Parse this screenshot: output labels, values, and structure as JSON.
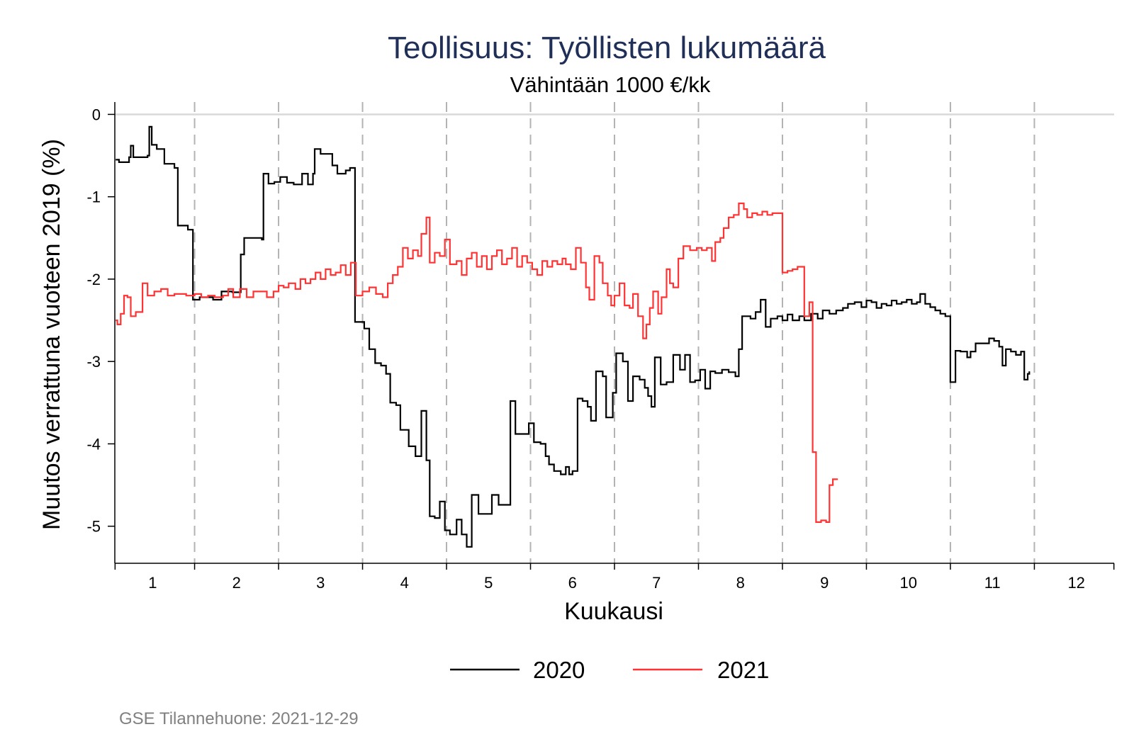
{
  "chart_data": {
    "type": "line",
    "title": "Teollisuus: Työllisten lukumäärä",
    "subtitle": "Vähintään 1000 €/kk",
    "xlabel": "Kuukausi",
    "ylabel": "Muutos verrattuna vuoteen 2019 (%)",
    "xlim": [
      0.55,
      12.45
    ],
    "ylim": [
      -5.45,
      0.15
    ],
    "x_ticks": [
      "1",
      "2",
      "3",
      "4",
      "5",
      "6",
      "7",
      "8",
      "9",
      "10",
      "11",
      "12"
    ],
    "y_ticks": [
      "0",
      "-1",
      "-2",
      "-3",
      "-4",
      "-5"
    ],
    "month_boundaries": [
      1.5,
      2.5,
      3.5,
      4.5,
      5.5,
      6.5,
      7.5,
      8.5,
      9.5,
      10.5,
      11.5
    ],
    "reference_line_y": 0,
    "legend_position": "bottom",
    "series": [
      {
        "name": "2020",
        "color": "#000000",
        "points": [
          [
            0.56,
            -0.55
          ],
          [
            0.6,
            -0.58
          ],
          [
            0.72,
            -0.52
          ],
          [
            0.74,
            -0.38
          ],
          [
            0.77,
            -0.52
          ],
          [
            0.86,
            -0.52
          ],
          [
            0.94,
            -0.5
          ],
          [
            0.96,
            -0.15
          ],
          [
            0.99,
            -0.37
          ],
          [
            1.05,
            -0.42
          ],
          [
            1.14,
            -0.6
          ],
          [
            1.21,
            -0.6
          ],
          [
            1.26,
            -0.65
          ],
          [
            1.3,
            -1.35
          ],
          [
            1.42,
            -1.4
          ],
          [
            1.48,
            -2.25
          ],
          [
            1.56,
            -2.22
          ],
          [
            1.72,
            -2.25
          ],
          [
            1.82,
            -2.15
          ],
          [
            1.95,
            -2.16
          ],
          [
            2.05,
            -1.7
          ],
          [
            2.09,
            -1.5
          ],
          [
            2.18,
            -1.5
          ],
          [
            2.3,
            -1.52
          ],
          [
            2.32,
            -0.72
          ],
          [
            2.38,
            -0.84
          ],
          [
            2.45,
            -0.82
          ],
          [
            2.52,
            -0.76
          ],
          [
            2.6,
            -0.83
          ],
          [
            2.68,
            -0.85
          ],
          [
            2.78,
            -0.72
          ],
          [
            2.85,
            -0.85
          ],
          [
            2.91,
            -0.72
          ],
          [
            2.93,
            -0.42
          ],
          [
            3.0,
            -0.48
          ],
          [
            3.14,
            -0.62
          ],
          [
            3.2,
            -0.72
          ],
          [
            3.3,
            -0.68
          ],
          [
            3.35,
            -0.65
          ],
          [
            3.41,
            -2.52
          ],
          [
            3.52,
            -2.6
          ],
          [
            3.58,
            -2.85
          ],
          [
            3.65,
            -3.02
          ],
          [
            3.72,
            -3.05
          ],
          [
            3.78,
            -3.15
          ],
          [
            3.83,
            -3.5
          ],
          [
            3.9,
            -3.53
          ],
          [
            3.95,
            -3.83
          ],
          [
            4.05,
            -4.03
          ],
          [
            4.13,
            -4.15
          ],
          [
            4.2,
            -3.6
          ],
          [
            4.26,
            -4.2
          ],
          [
            4.3,
            -4.88
          ],
          [
            4.36,
            -4.9
          ],
          [
            4.42,
            -4.7
          ],
          [
            4.48,
            -5.05
          ],
          [
            4.54,
            -5.1
          ],
          [
            4.62,
            -4.92
          ],
          [
            4.68,
            -5.1
          ],
          [
            4.74,
            -5.25
          ],
          [
            4.8,
            -4.62
          ],
          [
            4.88,
            -4.85
          ],
          [
            4.96,
            -4.85
          ],
          [
            5.04,
            -4.62
          ],
          [
            5.12,
            -4.74
          ],
          [
            5.22,
            -4.74
          ],
          [
            5.26,
            -3.48
          ],
          [
            5.32,
            -3.88
          ],
          [
            5.42,
            -3.88
          ],
          [
            5.48,
            -3.75
          ],
          [
            5.54,
            -3.98
          ],
          [
            5.62,
            -4.0
          ],
          [
            5.68,
            -4.15
          ],
          [
            5.72,
            -4.25
          ],
          [
            5.78,
            -4.33
          ],
          [
            5.86,
            -4.37
          ],
          [
            5.92,
            -4.28
          ],
          [
            5.96,
            -4.37
          ],
          [
            6.0,
            -4.33
          ],
          [
            6.06,
            -3.45
          ],
          [
            6.12,
            -3.48
          ],
          [
            6.18,
            -3.55
          ],
          [
            6.22,
            -3.72
          ],
          [
            6.28,
            -3.12
          ],
          [
            6.36,
            -3.18
          ],
          [
            6.4,
            -3.68
          ],
          [
            6.48,
            -3.38
          ],
          [
            6.52,
            -2.9
          ],
          [
            6.6,
            -3.0
          ],
          [
            6.66,
            -3.48
          ],
          [
            6.72,
            -3.18
          ],
          [
            6.8,
            -3.22
          ],
          [
            6.86,
            -3.32
          ],
          [
            6.9,
            -3.42
          ],
          [
            6.94,
            -3.55
          ],
          [
            6.98,
            -2.95
          ],
          [
            7.05,
            -3.28
          ],
          [
            7.12,
            -3.25
          ],
          [
            7.2,
            -2.92
          ],
          [
            7.28,
            -3.1
          ],
          [
            7.34,
            -2.92
          ],
          [
            7.4,
            -3.25
          ],
          [
            7.46,
            -3.23
          ],
          [
            7.52,
            -3.1
          ],
          [
            7.58,
            -3.33
          ],
          [
            7.64,
            -3.12
          ],
          [
            7.7,
            -3.14
          ],
          [
            7.78,
            -3.1
          ],
          [
            7.86,
            -3.13
          ],
          [
            7.94,
            -3.18
          ],
          [
            7.98,
            -2.85
          ],
          [
            8.02,
            -2.45
          ],
          [
            8.12,
            -2.48
          ],
          [
            8.18,
            -2.4
          ],
          [
            8.24,
            -2.25
          ],
          [
            8.3,
            -2.58
          ],
          [
            8.36,
            -2.48
          ],
          [
            8.44,
            -2.45
          ],
          [
            8.5,
            -2.5
          ],
          [
            8.56,
            -2.43
          ],
          [
            8.62,
            -2.5
          ],
          [
            8.7,
            -2.45
          ],
          [
            8.76,
            -2.5
          ],
          [
            8.84,
            -2.42
          ],
          [
            8.92,
            -2.48
          ],
          [
            8.98,
            -2.38
          ],
          [
            9.06,
            -2.42
          ],
          [
            9.14,
            -2.38
          ],
          [
            9.22,
            -2.35
          ],
          [
            9.28,
            -2.3
          ],
          [
            9.36,
            -2.28
          ],
          [
            9.44,
            -2.34
          ],
          [
            9.5,
            -2.26
          ],
          [
            9.56,
            -2.28
          ],
          [
            9.62,
            -2.35
          ],
          [
            9.68,
            -2.3
          ],
          [
            9.74,
            -2.32
          ],
          [
            9.8,
            -2.26
          ],
          [
            9.86,
            -2.3
          ],
          [
            9.92,
            -2.28
          ],
          [
            9.98,
            -2.25
          ],
          [
            10.04,
            -2.3
          ],
          [
            10.1,
            -2.28
          ],
          [
            10.14,
            -2.18
          ],
          [
            10.2,
            -2.3
          ],
          [
            10.26,
            -2.34
          ],
          [
            10.32,
            -2.38
          ],
          [
            10.38,
            -2.42
          ],
          [
            10.44,
            -2.45
          ],
          [
            10.5,
            -3.25
          ],
          [
            10.56,
            -2.87
          ],
          [
            10.62,
            -2.88
          ],
          [
            10.7,
            -2.95
          ],
          [
            10.74,
            -2.88
          ],
          [
            10.8,
            -2.78
          ],
          [
            10.9,
            -2.78
          ],
          [
            10.96,
            -2.72
          ],
          [
            11.02,
            -2.75
          ],
          [
            11.08,
            -2.82
          ],
          [
            11.12,
            -3.05
          ],
          [
            11.16,
            -2.85
          ],
          [
            11.22,
            -2.88
          ],
          [
            11.28,
            -2.92
          ],
          [
            11.34,
            -2.88
          ],
          [
            11.38,
            -3.22
          ],
          [
            11.42,
            -3.15
          ],
          [
            11.44,
            -3.12
          ]
        ]
      },
      {
        "name": "2021",
        "color": "#ff3333",
        "points": [
          [
            0.56,
            -2.5
          ],
          [
            0.58,
            -2.55
          ],
          [
            0.62,
            -2.42
          ],
          [
            0.66,
            -2.2
          ],
          [
            0.7,
            -2.22
          ],
          [
            0.74,
            -2.45
          ],
          [
            0.8,
            -2.4
          ],
          [
            0.88,
            -2.05
          ],
          [
            0.94,
            -2.2
          ],
          [
            1.02,
            -2.15
          ],
          [
            1.1,
            -2.12
          ],
          [
            1.18,
            -2.2
          ],
          [
            1.26,
            -2.18
          ],
          [
            1.34,
            -2.18
          ],
          [
            1.4,
            -2.2
          ],
          [
            1.5,
            -2.18
          ],
          [
            1.58,
            -2.22
          ],
          [
            1.66,
            -2.2
          ],
          [
            1.74,
            -2.22
          ],
          [
            1.84,
            -2.2
          ],
          [
            1.9,
            -2.12
          ],
          [
            1.96,
            -2.22
          ],
          [
            2.04,
            -2.12
          ],
          [
            2.12,
            -2.22
          ],
          [
            2.2,
            -2.15
          ],
          [
            2.28,
            -2.15
          ],
          [
            2.36,
            -2.22
          ],
          [
            2.44,
            -2.15
          ],
          [
            2.5,
            -2.08
          ],
          [
            2.56,
            -2.1
          ],
          [
            2.62,
            -2.05
          ],
          [
            2.7,
            -2.12
          ],
          [
            2.76,
            -2.0
          ],
          [
            2.82,
            -2.05
          ],
          [
            2.88,
            -2.0
          ],
          [
            2.94,
            -1.92
          ],
          [
            3.0,
            -2.0
          ],
          [
            3.06,
            -1.88
          ],
          [
            3.12,
            -1.95
          ],
          [
            3.18,
            -1.92
          ],
          [
            3.24,
            -1.83
          ],
          [
            3.3,
            -1.95
          ],
          [
            3.36,
            -1.8
          ],
          [
            3.42,
            -2.2
          ],
          [
            3.5,
            -2.15
          ],
          [
            3.58,
            -2.1
          ],
          [
            3.66,
            -2.18
          ],
          [
            3.74,
            -2.22
          ],
          [
            3.8,
            -2.05
          ],
          [
            3.86,
            -1.95
          ],
          [
            3.92,
            -1.85
          ],
          [
            3.98,
            -1.62
          ],
          [
            4.04,
            -1.75
          ],
          [
            4.1,
            -1.65
          ],
          [
            4.16,
            -1.72
          ],
          [
            4.2,
            -1.45
          ],
          [
            4.26,
            -1.25
          ],
          [
            4.3,
            -1.8
          ],
          [
            4.36,
            -1.68
          ],
          [
            4.42,
            -1.72
          ],
          [
            4.48,
            -1.52
          ],
          [
            4.54,
            -1.82
          ],
          [
            4.62,
            -1.78
          ],
          [
            4.68,
            -1.95
          ],
          [
            4.74,
            -1.75
          ],
          [
            4.8,
            -1.68
          ],
          [
            4.86,
            -1.85
          ],
          [
            4.92,
            -1.72
          ],
          [
            4.98,
            -1.88
          ],
          [
            5.04,
            -1.72
          ],
          [
            5.1,
            -1.65
          ],
          [
            5.16,
            -1.82
          ],
          [
            5.22,
            -1.75
          ],
          [
            5.28,
            -1.62
          ],
          [
            5.34,
            -1.85
          ],
          [
            5.4,
            -1.72
          ],
          [
            5.46,
            -1.8
          ],
          [
            5.52,
            -1.88
          ],
          [
            5.58,
            -1.95
          ],
          [
            5.64,
            -1.78
          ],
          [
            5.7,
            -1.85
          ],
          [
            5.76,
            -1.78
          ],
          [
            5.82,
            -1.82
          ],
          [
            5.88,
            -1.75
          ],
          [
            5.92,
            -1.82
          ],
          [
            5.98,
            -1.88
          ],
          [
            6.04,
            -1.62
          ],
          [
            6.1,
            -1.8
          ],
          [
            6.16,
            -2.1
          ],
          [
            6.2,
            -2.25
          ],
          [
            6.26,
            -1.72
          ],
          [
            6.32,
            -1.8
          ],
          [
            6.36,
            -2.05
          ],
          [
            6.42,
            -2.2
          ],
          [
            6.46,
            -2.32
          ],
          [
            6.5,
            -2.2
          ],
          [
            6.56,
            -2.05
          ],
          [
            6.62,
            -2.32
          ],
          [
            6.68,
            -2.35
          ],
          [
            6.72,
            -2.18
          ],
          [
            6.78,
            -2.45
          ],
          [
            6.84,
            -2.72
          ],
          [
            6.88,
            -2.55
          ],
          [
            6.92,
            -2.35
          ],
          [
            6.96,
            -2.15
          ],
          [
            7.02,
            -2.42
          ],
          [
            7.06,
            -2.22
          ],
          [
            7.12,
            -1.88
          ],
          [
            7.16,
            -2.05
          ],
          [
            7.2,
            -2.1
          ],
          [
            7.26,
            -1.75
          ],
          [
            7.32,
            -1.6
          ],
          [
            7.4,
            -1.65
          ],
          [
            7.48,
            -1.62
          ],
          [
            7.54,
            -1.65
          ],
          [
            7.6,
            -1.62
          ],
          [
            7.66,
            -1.78
          ],
          [
            7.7,
            -1.55
          ],
          [
            7.76,
            -1.5
          ],
          [
            7.8,
            -1.38
          ],
          [
            7.86,
            -1.25
          ],
          [
            7.92,
            -1.22
          ],
          [
            7.98,
            -1.08
          ],
          [
            8.04,
            -1.15
          ],
          [
            8.08,
            -1.25
          ],
          [
            8.14,
            -1.2
          ],
          [
            8.2,
            -1.22
          ],
          [
            8.26,
            -1.18
          ],
          [
            8.32,
            -1.22
          ],
          [
            8.38,
            -1.2
          ],
          [
            8.44,
            -1.2
          ],
          [
            8.5,
            -1.92
          ],
          [
            8.56,
            -1.9
          ],
          [
            8.62,
            -1.88
          ],
          [
            8.68,
            -1.85
          ],
          [
            8.76,
            -2.45
          ],
          [
            8.82,
            -2.28
          ],
          [
            8.86,
            -4.1
          ],
          [
            8.9,
            -4.95
          ],
          [
            8.96,
            -4.93
          ],
          [
            9.02,
            -4.95
          ],
          [
            9.06,
            -4.5
          ],
          [
            9.1,
            -4.43
          ],
          [
            9.16,
            -4.43
          ]
        ]
      }
    ]
  },
  "source_text": "GSE Tilannehuone: 2021-12-29"
}
